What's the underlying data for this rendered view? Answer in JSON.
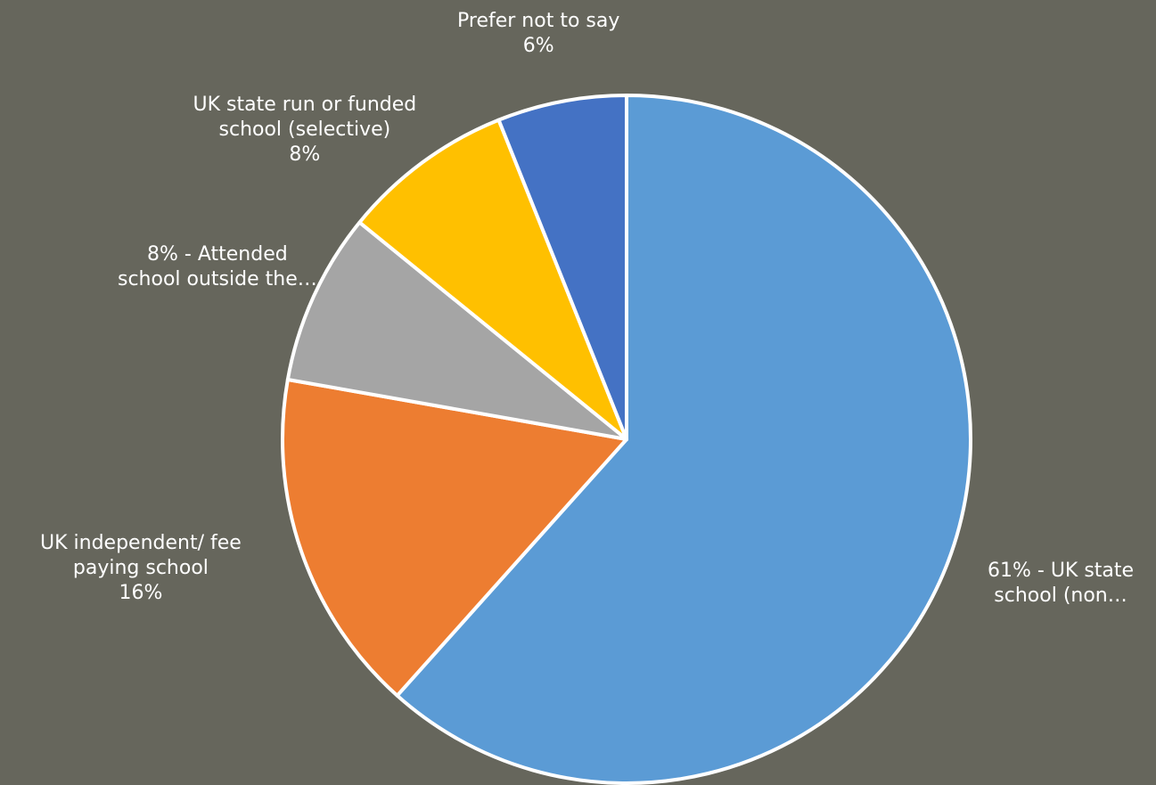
{
  "chart_data": {
    "type": "pie",
    "start_angle_deg": 0,
    "direction": "clockwise",
    "slices": [
      {
        "label_lines": [
          "61% - UK state",
          "school (non…"
        ],
        "value": 61,
        "color": "#5b9bd5"
      },
      {
        "label_lines": [
          "UK independent/ fee",
          "paying school",
          "16%"
        ],
        "value": 16,
        "color": "#ed7d31"
      },
      {
        "label_lines": [
          "8% - Attended",
          "school outside the…"
        ],
        "value": 8,
        "color": "#a5a5a5"
      },
      {
        "label_lines": [
          "UK state run or funded",
          "school (selective)",
          "8%"
        ],
        "value": 8,
        "color": "#ffc000"
      },
      {
        "label_lines": [
          "Prefer not to say",
          "6%"
        ],
        "value": 6,
        "color": "#4472c4"
      }
    ],
    "background": "#66665c",
    "legend": "none",
    "title": ""
  }
}
